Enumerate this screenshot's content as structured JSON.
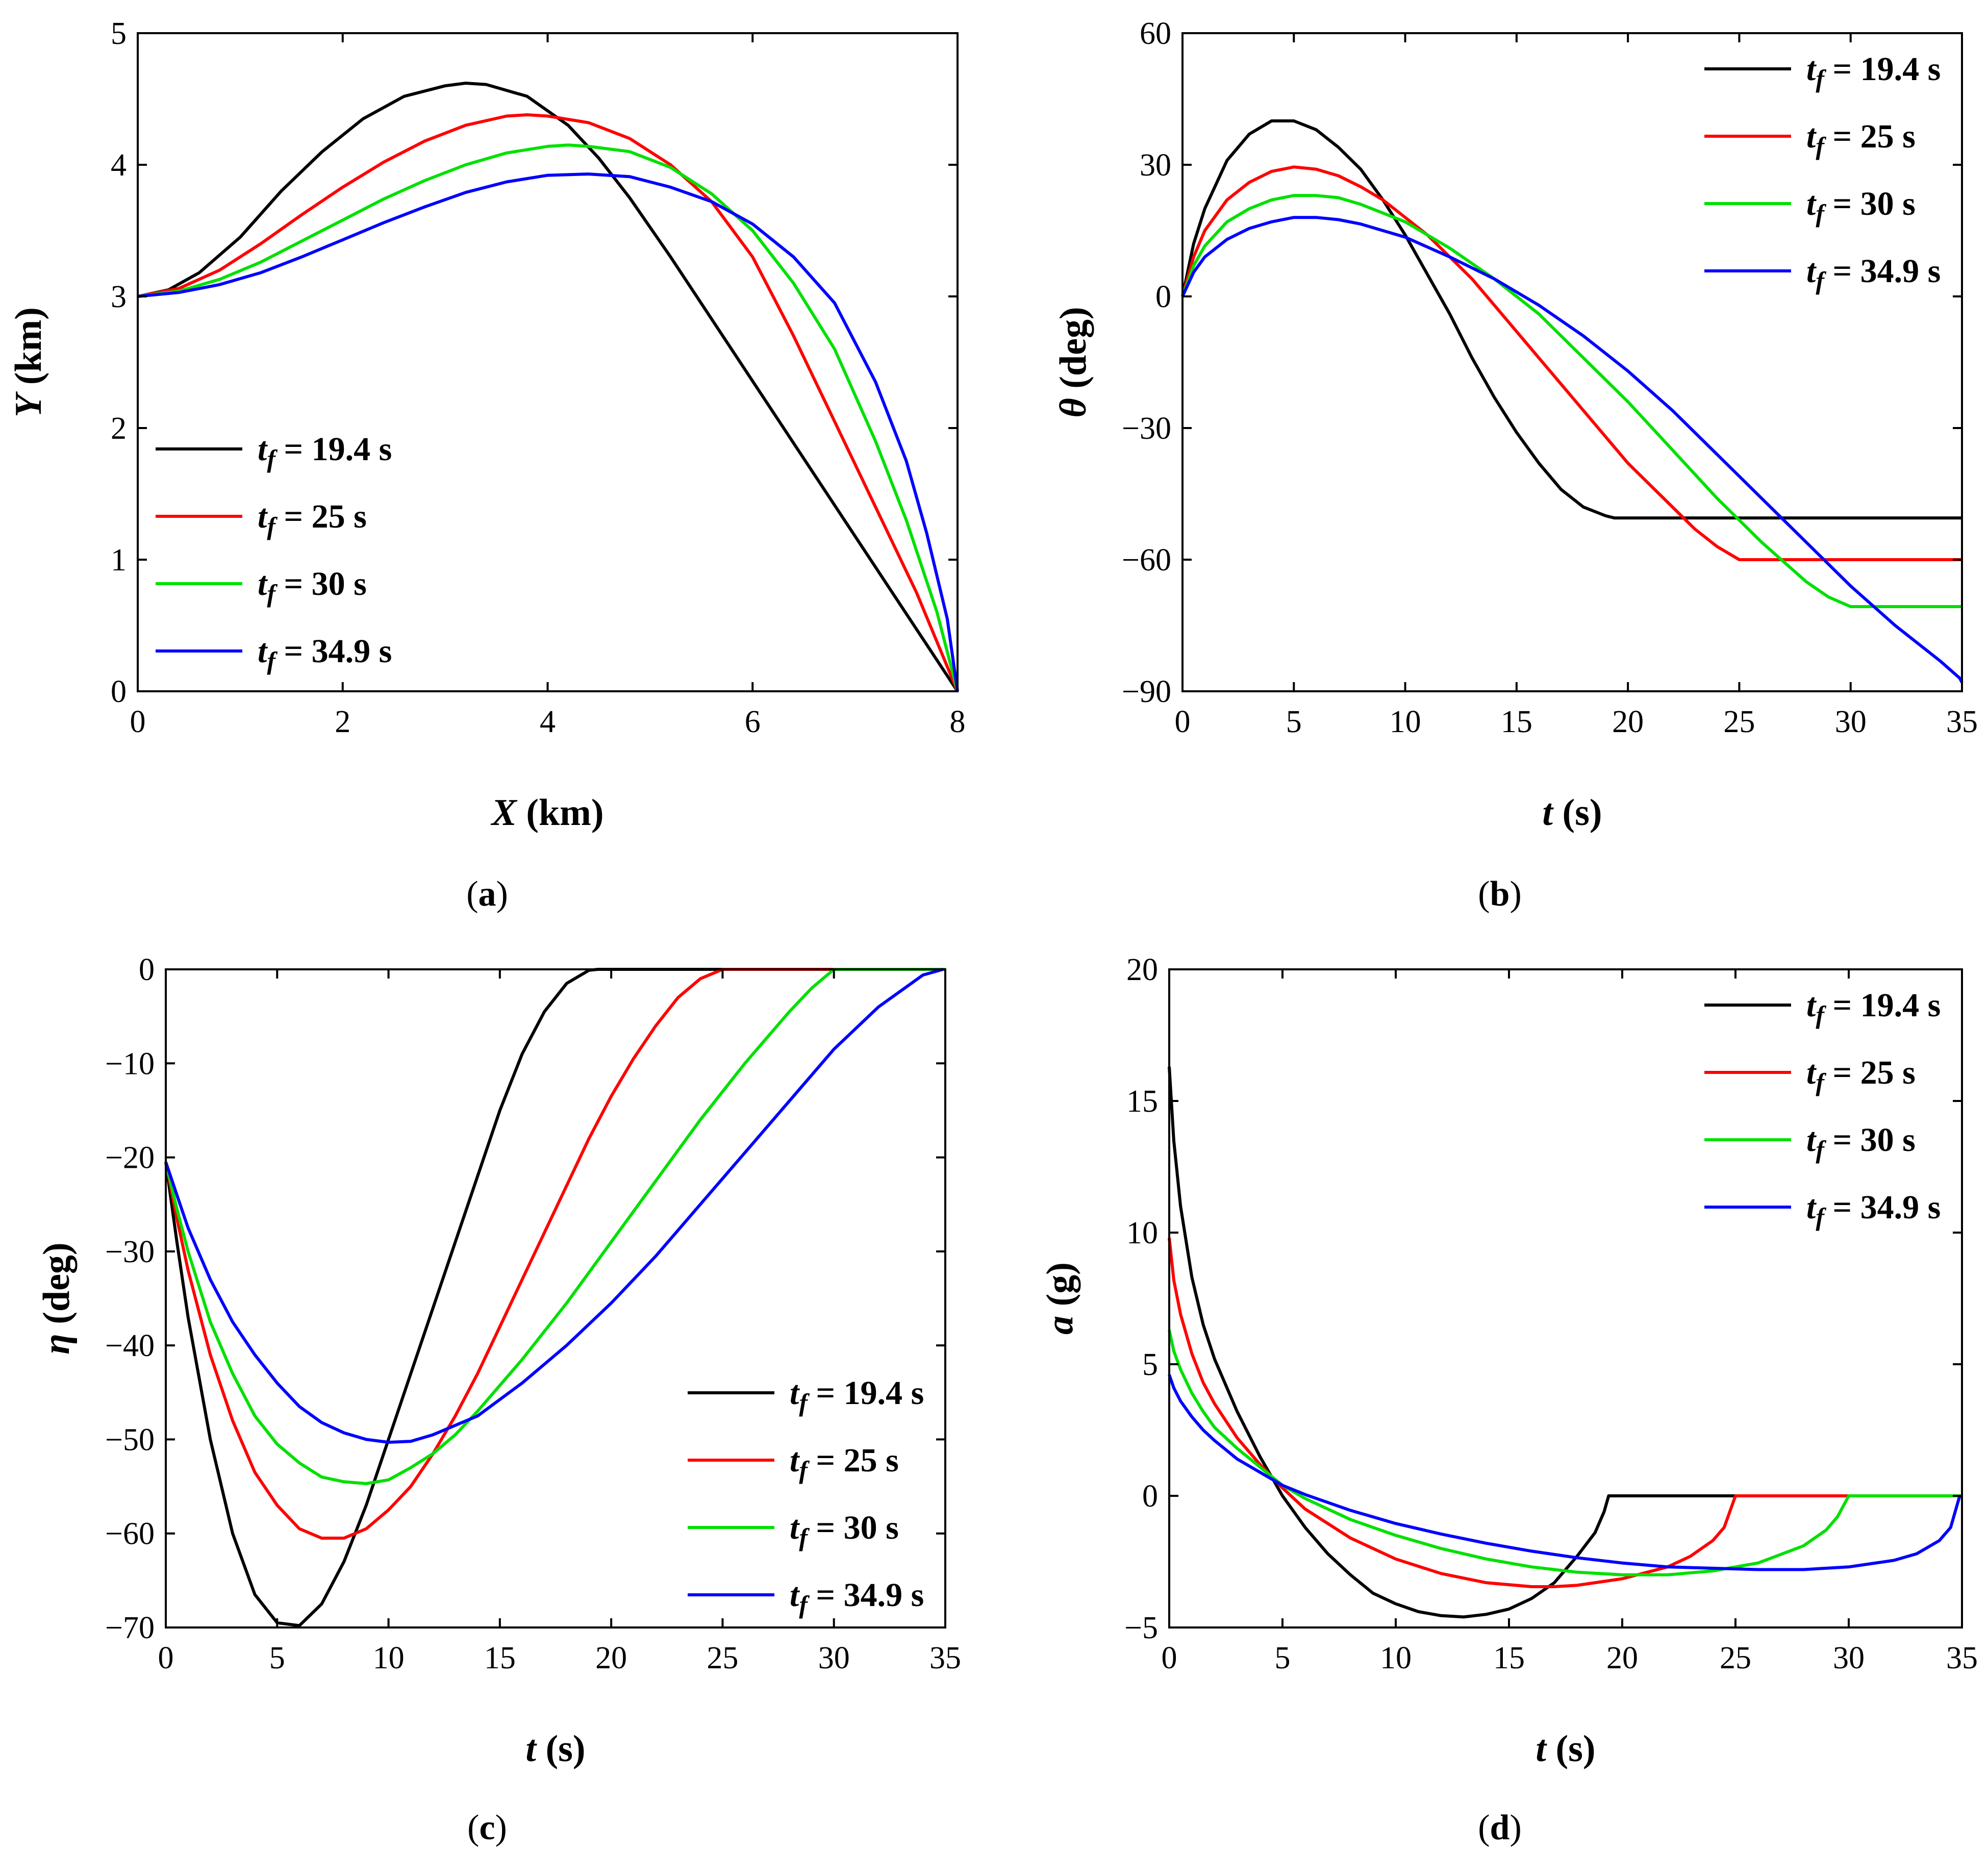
{
  "legend_labels": [
    "t_f = 19.4 s",
    "t_f = 25 s",
    "t_f = 30 s",
    "t_f = 34.9 s"
  ],
  "chart_data": [
    {
      "id": "a",
      "type": "line",
      "caption": "(a)",
      "xlabel": "X (km)",
      "ylabel": "Y (km)",
      "xlim": [
        0,
        8
      ],
      "ylim": [
        0,
        5
      ],
      "xticks": [
        0,
        2,
        4,
        6,
        8
      ],
      "yticks": [
        0,
        1,
        2,
        3,
        4,
        5
      ],
      "grid": false,
      "legend_position": "lower-left",
      "series": [
        {
          "name": "t_f = 19.4 s",
          "color": "#000000",
          "x": [
            0,
            0.3,
            0.6,
            1.0,
            1.4,
            1.8,
            2.2,
            2.6,
            3.0,
            3.2,
            3.4,
            3.8,
            4.2,
            4.5,
            4.8,
            5.2,
            8.0
          ],
          "y": [
            3.0,
            3.05,
            3.18,
            3.45,
            3.8,
            4.1,
            4.35,
            4.52,
            4.6,
            4.62,
            4.61,
            4.52,
            4.3,
            4.05,
            3.75,
            3.3,
            0.0
          ]
        },
        {
          "name": "t_f = 25 s",
          "color": "#ff0000",
          "x": [
            0,
            0.4,
            0.8,
            1.2,
            1.6,
            2.0,
            2.4,
            2.8,
            3.2,
            3.6,
            3.8,
            4.0,
            4.4,
            4.8,
            5.2,
            5.6,
            6.0,
            6.4,
            6.8,
            7.2,
            7.6,
            8.0
          ],
          "y": [
            3.0,
            3.06,
            3.2,
            3.4,
            3.62,
            3.83,
            4.02,
            4.18,
            4.3,
            4.37,
            4.38,
            4.37,
            4.32,
            4.2,
            4.0,
            3.72,
            3.3,
            2.7,
            2.05,
            1.4,
            0.75,
            0.0
          ]
        },
        {
          "name": "t_f = 30 s",
          "color": "#00e000",
          "x": [
            0,
            0.4,
            0.8,
            1.2,
            1.6,
            2.0,
            2.4,
            2.8,
            3.2,
            3.6,
            4.0,
            4.2,
            4.4,
            4.8,
            5.2,
            5.6,
            6.0,
            6.4,
            6.8,
            7.2,
            7.5,
            7.8,
            8.0
          ],
          "y": [
            3.0,
            3.04,
            3.13,
            3.26,
            3.42,
            3.58,
            3.74,
            3.88,
            4.0,
            4.09,
            4.14,
            4.15,
            4.14,
            4.1,
            3.98,
            3.78,
            3.5,
            3.1,
            2.6,
            1.9,
            1.3,
            0.6,
            0.0
          ]
        },
        {
          "name": "t_f = 34.9 s",
          "color": "#0000ff",
          "x": [
            0,
            0.4,
            0.8,
            1.2,
            1.6,
            2.0,
            2.4,
            2.8,
            3.2,
            3.6,
            4.0,
            4.4,
            4.8,
            5.2,
            5.6,
            6.0,
            6.4,
            6.8,
            7.2,
            7.5,
            7.7,
            7.9,
            8.0
          ],
          "y": [
            3.0,
            3.03,
            3.09,
            3.18,
            3.3,
            3.43,
            3.56,
            3.68,
            3.79,
            3.87,
            3.92,
            3.93,
            3.91,
            3.83,
            3.72,
            3.55,
            3.3,
            2.95,
            2.35,
            1.75,
            1.2,
            0.55,
            0.0
          ]
        }
      ]
    },
    {
      "id": "b",
      "type": "line",
      "caption": "(b)",
      "xlabel": "t (s)",
      "ylabel": "θ (deg)",
      "xlim": [
        0,
        35
      ],
      "ylim": [
        -90,
        60
      ],
      "xticks": [
        0,
        5,
        10,
        15,
        20,
        25,
        30,
        35
      ],
      "yticks": [
        -90,
        -60,
        -30,
        0,
        30,
        60
      ],
      "grid": false,
      "legend_position": "top-right",
      "series": [
        {
          "name": "t_f = 19.4 s",
          "color": "#000000",
          "x": [
            0,
            0.5,
            1,
            2,
            3,
            4,
            5,
            6,
            7,
            8,
            9,
            10,
            11,
            12,
            13,
            14,
            15,
            16,
            17,
            18,
            19,
            19.4,
            25,
            30,
            35
          ],
          "y": [
            0,
            12,
            20,
            31,
            37,
            40,
            40,
            38,
            34,
            29,
            22,
            14,
            5,
            -4,
            -14,
            -23,
            -31,
            -38,
            -44,
            -48,
            -50,
            -50.5,
            -50.5,
            -50.5,
            -50.5
          ]
        },
        {
          "name": "t_f = 25 s",
          "color": "#ff0000",
          "x": [
            0,
            0.5,
            1,
            2,
            3,
            4,
            5,
            6,
            7,
            8,
            9,
            10,
            11,
            12,
            13,
            14,
            15,
            16,
            17,
            18,
            19,
            20,
            21,
            22,
            23,
            24,
            25,
            30,
            35
          ],
          "y": [
            0,
            9,
            15,
            22,
            26,
            28.5,
            29.5,
            29,
            27.5,
            25,
            22,
            18,
            14,
            9,
            4,
            -2,
            -8,
            -14,
            -20,
            -26,
            -32,
            -38,
            -43,
            -48,
            -53,
            -57,
            -60,
            -60,
            -60
          ]
        },
        {
          "name": "t_f = 30 s",
          "color": "#00e000",
          "x": [
            0,
            0.5,
            1,
            2,
            3,
            4,
            5,
            6,
            7,
            8,
            9,
            10,
            12,
            14,
            16,
            18,
            20,
            22,
            24,
            26,
            28,
            29,
            30,
            35
          ],
          "y": [
            0,
            7,
            11.5,
            17,
            20,
            22,
            23,
            23,
            22.5,
            21,
            19,
            17,
            11,
            4,
            -4,
            -14,
            -24,
            -35,
            -46,
            -56,
            -65,
            -68.5,
            -70.7,
            -70.7
          ]
        },
        {
          "name": "t_f = 34.9 s",
          "color": "#0000ff",
          "x": [
            0,
            0.5,
            1,
            2,
            3,
            4,
            5,
            6,
            7,
            8,
            9,
            10,
            12,
            14,
            16,
            18,
            20,
            22,
            24,
            26,
            28,
            30,
            32,
            34,
            34.9,
            35
          ],
          "y": [
            0,
            5.5,
            9,
            13,
            15.5,
            17,
            18,
            18,
            17.5,
            16.5,
            15,
            13.5,
            9,
            4,
            -2,
            -9,
            -17,
            -26,
            -36,
            -46,
            -56,
            -66,
            -75,
            -83,
            -87,
            -88
          ]
        }
      ]
    },
    {
      "id": "c",
      "type": "line",
      "caption": "(c)",
      "xlabel": "t (s)",
      "ylabel": "η (deg)",
      "xlim": [
        0,
        35
      ],
      "ylim": [
        -70,
        0
      ],
      "xticks": [
        0,
        5,
        10,
        15,
        20,
        25,
        30,
        35
      ],
      "yticks": [
        -70,
        -60,
        -50,
        -40,
        -30,
        -20,
        -10,
        0
      ],
      "grid": false,
      "legend_position": "lower-right",
      "series": [
        {
          "name": "t_f = 19.4 s",
          "color": "#000000",
          "x": [
            0,
            0.5,
            1,
            2,
            3,
            4,
            5,
            6,
            7,
            8,
            9,
            10,
            11,
            12,
            13,
            14,
            15,
            16,
            17,
            18,
            19,
            19.4,
            25,
            30,
            35
          ],
          "y": [
            -20.5,
            -29,
            -37,
            -50,
            -60,
            -66.5,
            -69.5,
            -69.8,
            -67.5,
            -63,
            -57,
            -50,
            -43,
            -36,
            -29,
            -22,
            -15,
            -9,
            -4.5,
            -1.5,
            -0.1,
            0,
            0,
            0,
            0
          ]
        },
        {
          "name": "t_f = 25 s",
          "color": "#ff0000",
          "x": [
            0,
            0.5,
            1,
            2,
            3,
            4,
            5,
            6,
            7,
            8,
            9,
            10,
            11,
            12,
            13,
            14,
            15,
            16,
            17,
            18,
            19,
            20,
            21,
            22,
            23,
            24,
            25,
            30,
            35
          ],
          "y": [
            -20.5,
            -26.5,
            -32,
            -41,
            -48,
            -53.5,
            -57,
            -59.5,
            -60.5,
            -60.5,
            -59.5,
            -57.5,
            -55,
            -51.5,
            -47.5,
            -43,
            -38,
            -33,
            -28,
            -23,
            -18,
            -13.5,
            -9.5,
            -6,
            -3,
            -1,
            0,
            0,
            0
          ]
        },
        {
          "name": "t_f = 30 s",
          "color": "#00e000",
          "x": [
            0,
            0.5,
            1,
            2,
            3,
            4,
            5,
            6,
            7,
            8,
            9,
            10,
            11,
            12,
            13,
            14,
            16,
            18,
            20,
            22,
            24,
            26,
            28,
            29,
            30,
            35
          ],
          "y": [
            -20.5,
            -25.5,
            -30,
            -37.5,
            -43,
            -47.5,
            -50.5,
            -52.5,
            -54,
            -54.5,
            -54.7,
            -54.3,
            -53,
            -51.5,
            -49.5,
            -47,
            -41.5,
            -35.5,
            -29,
            -22.5,
            -16,
            -10,
            -4.5,
            -2,
            0,
            0
          ]
        },
        {
          "name": "t_f = 34.9 s",
          "color": "#0000ff",
          "x": [
            0,
            0.5,
            1,
            2,
            3,
            4,
            5,
            6,
            7,
            8,
            9,
            10,
            11,
            12,
            14,
            16,
            18,
            20,
            22,
            24,
            26,
            28,
            30,
            32,
            34,
            34.9
          ],
          "y": [
            -20.5,
            -24,
            -27.5,
            -33,
            -37.5,
            -41,
            -44,
            -46.5,
            -48.2,
            -49.3,
            -50,
            -50.3,
            -50.2,
            -49.5,
            -47.5,
            -44,
            -40,
            -35.5,
            -30.5,
            -25,
            -19.5,
            -14,
            -8.5,
            -4,
            -0.6,
            0
          ]
        }
      ]
    },
    {
      "id": "d",
      "type": "line",
      "caption": "(d)",
      "xlabel": "t (s)",
      "ylabel": "a (g)",
      "xlim": [
        0,
        35
      ],
      "ylim": [
        -5,
        20
      ],
      "xticks": [
        0,
        5,
        10,
        15,
        20,
        25,
        30,
        35
      ],
      "yticks": [
        -5,
        0,
        5,
        10,
        15,
        20
      ],
      "grid": false,
      "legend_position": "top-right",
      "series": [
        {
          "name": "t_f = 19.4 s",
          "color": "#000000",
          "x": [
            0,
            0.2,
            0.5,
            1,
            1.5,
            2,
            3,
            4,
            5,
            6,
            7,
            8,
            9,
            10,
            11,
            12,
            13,
            14,
            15,
            16,
            17,
            18,
            18.8,
            19.2,
            19.4,
            25
          ],
          "y": [
            16.3,
            13.5,
            11,
            8.3,
            6.5,
            5.2,
            3.2,
            1.5,
            0,
            -1.2,
            -2.2,
            -3,
            -3.7,
            -4.1,
            -4.4,
            -4.55,
            -4.6,
            -4.5,
            -4.3,
            -3.9,
            -3.3,
            -2.3,
            -1.4,
            -0.6,
            0,
            0
          ]
        },
        {
          "name": "t_f = 25 s",
          "color": "#ff0000",
          "x": [
            0,
            0.2,
            0.5,
            1,
            1.5,
            2,
            3,
            4,
            5,
            6,
            8,
            10,
            12,
            14,
            16,
            17,
            18,
            20,
            22,
            23,
            24,
            24.5,
            25,
            30
          ],
          "y": [
            9.8,
            8.2,
            6.9,
            5.4,
            4.3,
            3.5,
            2.2,
            1.2,
            0.3,
            -0.5,
            -1.6,
            -2.4,
            -2.95,
            -3.3,
            -3.45,
            -3.45,
            -3.4,
            -3.15,
            -2.7,
            -2.3,
            -1.7,
            -1.2,
            0,
            0
          ]
        },
        {
          "name": "t_f = 30 s",
          "color": "#00e000",
          "x": [
            0,
            0.2,
            0.5,
            1,
            1.5,
            2,
            3,
            4,
            5,
            6,
            8,
            10,
            12,
            14,
            16,
            18,
            20,
            22,
            24,
            26,
            28,
            29,
            29.5,
            30,
            35
          ],
          "y": [
            6.3,
            5.5,
            4.8,
            3.9,
            3.2,
            2.6,
            1.8,
            1.1,
            0.4,
            -0.1,
            -0.9,
            -1.5,
            -2.0,
            -2.4,
            -2.7,
            -2.9,
            -3.0,
            -3.0,
            -2.85,
            -2.55,
            -1.9,
            -1.3,
            -0.8,
            0,
            0
          ]
        },
        {
          "name": "t_f = 34.9 s",
          "color": "#0000ff",
          "x": [
            0,
            0.2,
            0.5,
            1,
            1.5,
            2,
            3,
            4,
            5,
            6,
            8,
            10,
            12,
            14,
            16,
            18,
            20,
            22,
            24,
            26,
            28,
            30,
            32,
            33,
            34,
            34.5,
            34.9
          ],
          "y": [
            4.6,
            4.1,
            3.6,
            3.0,
            2.5,
            2.1,
            1.4,
            0.9,
            0.4,
            0.05,
            -0.55,
            -1.05,
            -1.45,
            -1.8,
            -2.1,
            -2.35,
            -2.55,
            -2.7,
            -2.75,
            -2.8,
            -2.8,
            -2.7,
            -2.45,
            -2.2,
            -1.7,
            -1.2,
            0
          ]
        }
      ]
    }
  ]
}
